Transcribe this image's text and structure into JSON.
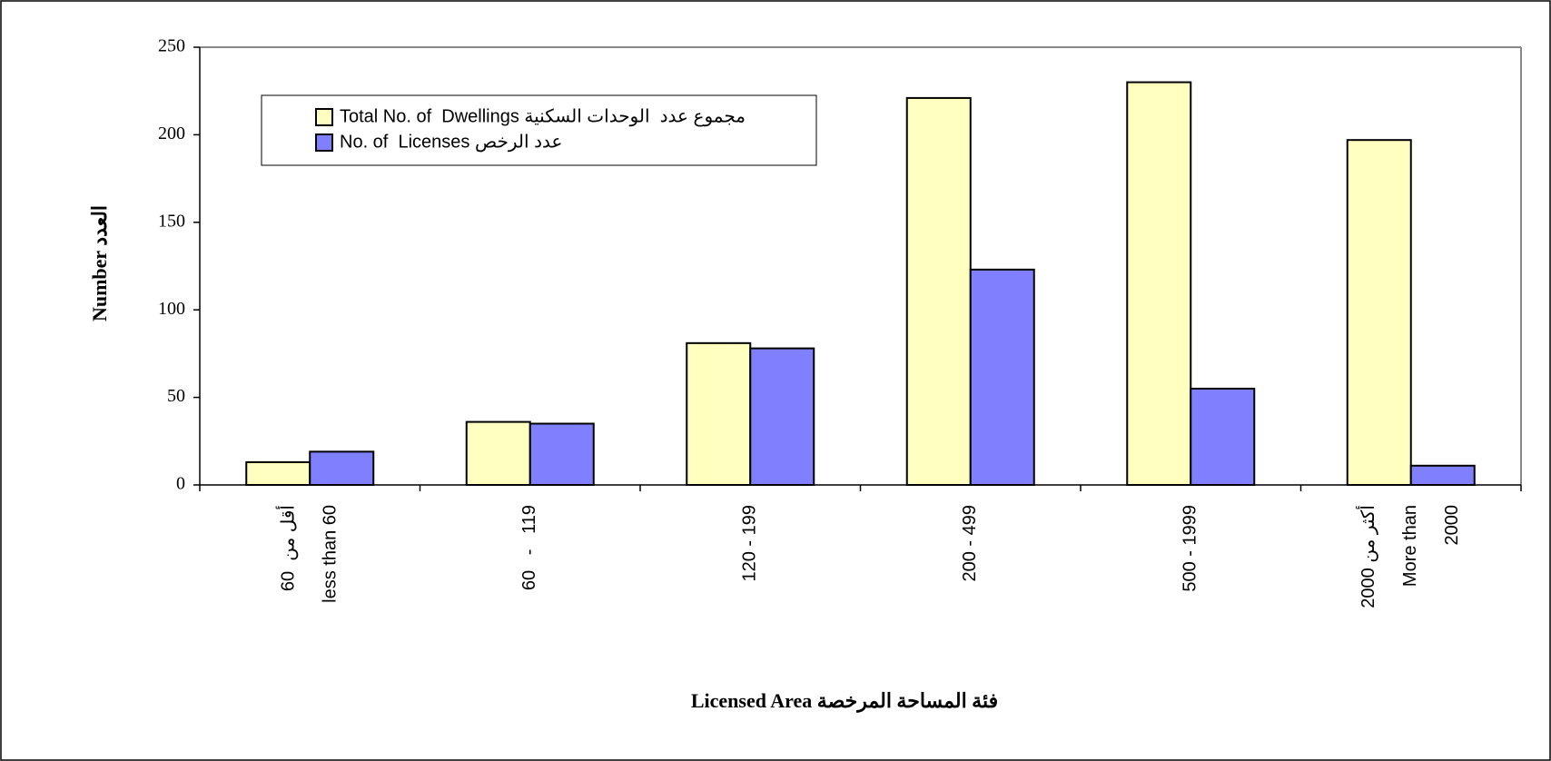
{
  "chart_data": {
    "type": "bar",
    "categories": [
      [
        "60  أقل من",
        "less than 60"
      ],
      [
        "60   -   119"
      ],
      [
        "120 - 199"
      ],
      [
        "200 - 499"
      ],
      [
        "500 - 1999"
      ],
      [
        "2000 أكثر من",
        "More than",
        "2000"
      ]
    ],
    "series": [
      {
        "name": "Total No. of  Dwellings مجموع عدد  الوحدات السكنية",
        "color": "#ffffc0",
        "values": [
          13,
          36,
          81,
          221,
          230,
          197
        ]
      },
      {
        "name": "No. of  Licenses عدد الرخص",
        "color": "#8080ff",
        "values": [
          19,
          35,
          78,
          123,
          55,
          11
        ]
      }
    ],
    "y_label": "Number العدد",
    "x_label": "Licensed Area فئة المساحة المرخصة",
    "ylim": [
      0,
      250
    ],
    "yticks": [
      0,
      50,
      100,
      150,
      200,
      250
    ],
    "grid": false
  }
}
